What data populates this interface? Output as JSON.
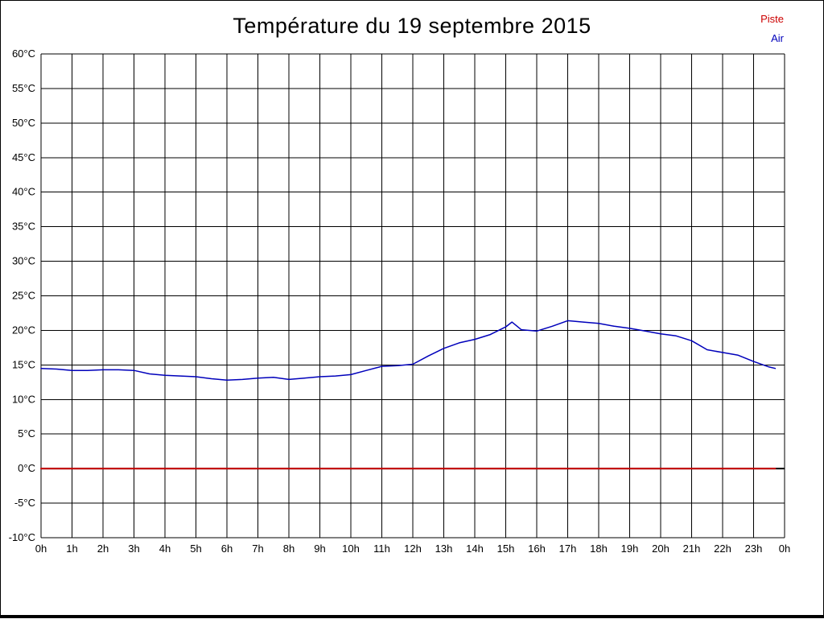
{
  "title": "Température du 19 septembre 2015",
  "legend": [
    {
      "label": "Piste",
      "color": "#cc0000"
    },
    {
      "label": "Air",
      "color": "#0000bb"
    }
  ],
  "chart_data": {
    "type": "line",
    "title": "Température du 19 septembre 2015",
    "xlabel": "",
    "ylabel": "",
    "xlim": [
      0,
      24
    ],
    "ylim": [
      -10,
      60
    ],
    "grid": true,
    "grid_color": "#000000",
    "zero_line": {
      "value": 0,
      "color": "#000000"
    },
    "x_tick_labels": [
      "0h",
      "1h",
      "2h",
      "3h",
      "4h",
      "5h",
      "6h",
      "7h",
      "8h",
      "9h",
      "10h",
      "11h",
      "12h",
      "13h",
      "14h",
      "15h",
      "16h",
      "17h",
      "18h",
      "19h",
      "20h",
      "21h",
      "22h",
      "23h",
      "0h"
    ],
    "y_tick_labels": [
      "60°C",
      "55°C",
      "50°C",
      "45°C",
      "40°C",
      "35°C",
      "30°C",
      "25°C",
      "20°C",
      "15°C",
      "10°C",
      "5°C",
      "0°C",
      "-5°C",
      "-10°C"
    ],
    "y_tick_values": [
      60,
      55,
      50,
      45,
      40,
      35,
      30,
      25,
      20,
      15,
      10,
      5,
      0,
      -5,
      -10
    ],
    "series": [
      {
        "name": "Piste",
        "color": "#cc0000",
        "width": 2,
        "x": [
          0,
          23.7
        ],
        "y": [
          0,
          0
        ]
      },
      {
        "name": "Air",
        "color": "#0000bb",
        "width": 1.5,
        "x": [
          0,
          0.5,
          1,
          1.5,
          2,
          2.5,
          3,
          3.5,
          4,
          4.5,
          5,
          5.5,
          6,
          6.5,
          7,
          7.5,
          8,
          8.5,
          9,
          9.5,
          10,
          10.5,
          11,
          11.5,
          12,
          12.5,
          13,
          13.5,
          14,
          14.5,
          15,
          15.2,
          15.5,
          16,
          16.5,
          17,
          17.5,
          18,
          18.5,
          19,
          19.5,
          20,
          20.5,
          21,
          21.5,
          22,
          22.5,
          23,
          23.5,
          23.7
        ],
        "y": [
          14.5,
          14.4,
          14.2,
          14.2,
          14.3,
          14.3,
          14.2,
          13.7,
          13.5,
          13.4,
          13.3,
          13.0,
          12.8,
          12.9,
          13.1,
          13.2,
          12.9,
          13.1,
          13.3,
          13.4,
          13.6,
          14.2,
          14.8,
          14.9,
          15.1,
          16.3,
          17.4,
          18.2,
          18.7,
          19.4,
          20.5,
          21.2,
          20.1,
          19.9,
          20.6,
          21.4,
          21.2,
          21.0,
          20.6,
          20.3,
          19.9,
          19.5,
          19.2,
          18.5,
          17.2,
          16.8,
          16.4,
          15.5,
          14.7,
          14.5
        ]
      }
    ]
  }
}
